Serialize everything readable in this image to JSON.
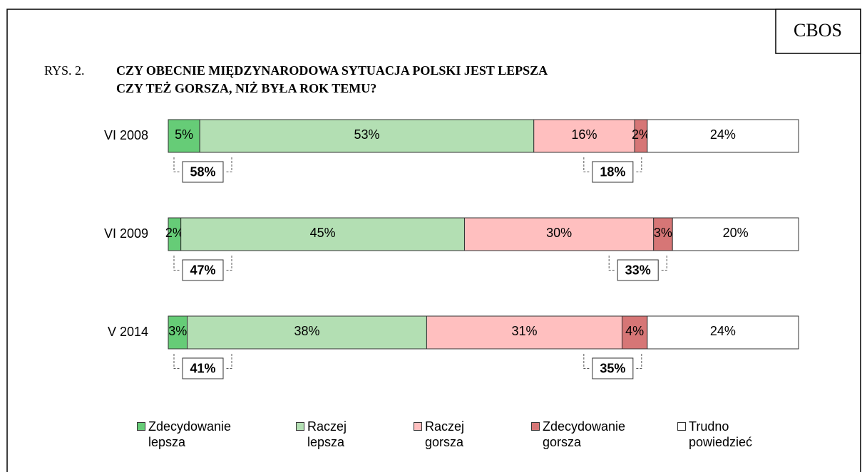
{
  "chart_data": {
    "type": "stacked_bar_horizontal",
    "source": "CBOS",
    "figure_label": "RYS. 2.",
    "title": [
      "CZY OBECNIE MIĘDZYNARODOWA SYTUACJA POLSKI JEST LEPSZA",
      "CZY TEŻ GORSZA, NIŻ BYŁA ROK TEMU?"
    ],
    "categories": [
      "VI 2008",
      "VI 2009",
      "V 2014"
    ],
    "xlim": [
      0,
      100
    ],
    "series": [
      {
        "name": "Zdecydowanie lepsza",
        "color": "#66cc77",
        "values": [
          5,
          2,
          3
        ],
        "value_labels": [
          "5%",
          "2%",
          "3%"
        ]
      },
      {
        "name": "Raczej lepsza",
        "color": "#b3dfb3",
        "values": [
          53,
          45,
          38
        ],
        "value_labels": [
          "53%",
          "45%",
          "38%"
        ]
      },
      {
        "name": "Raczej gorsza",
        "color": "#ffbfbf",
        "values": [
          16,
          30,
          31
        ],
        "value_labels": [
          "16%",
          "30%",
          "31%"
        ]
      },
      {
        "name": "Zdecydowanie gorsza",
        "color": "#d67676",
        "values": [
          2,
          3,
          4
        ],
        "value_labels": [
          "2%",
          "3%",
          "4%"
        ]
      },
      {
        "name": "Trudno powiedzieć",
        "color": "#ffffff",
        "values": [
          24,
          20,
          24
        ],
        "value_labels": [
          "24%",
          "20%",
          "24%"
        ]
      }
    ],
    "totals": [
      {
        "values": [
          58,
          47,
          41
        ],
        "value_labels": [
          "58%",
          "47%",
          "41%"
        ]
      },
      {
        "values": [
          18,
          33,
          35
        ],
        "value_labels": [
          "18%",
          "33%",
          "35%"
        ]
      }
    ],
    "legend": "bottom"
  }
}
